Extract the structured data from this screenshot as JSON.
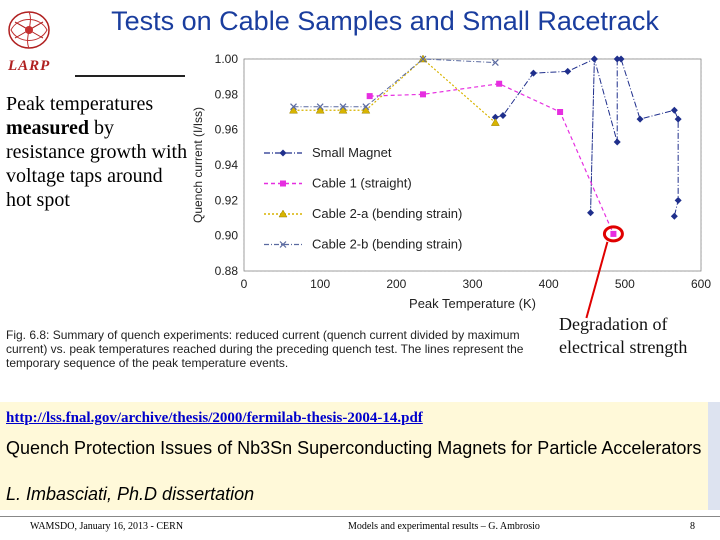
{
  "title": "Tests on Cable Samples and Small Racetrack",
  "logo_text": "LARP",
  "left_text": {
    "line_pre": "Peak temperatures ",
    "bold": "measured",
    "line_post": " by resistance growth with voltage taps around hot spot"
  },
  "caption": "Fig. 6.8: Summary of quench experiments: reduced current (quench current divided by maximum current) vs. peak temperatures reached during the preceding quench test. The lines represent the temporary sequence of the peak temperature events.",
  "degradation": "Degradation of electrical strength",
  "link": "http://lss.fnal.gov/archive/thesis/2000/fermilab-thesis-2004-14.pdf",
  "thesis_title": "Quench Protection Issues of Nb3Sn Superconducting Magnets for Particle Accelerators",
  "thesis_author": "L. Imbasciati, Ph.D dissertation",
  "footer": {
    "left": "WAMSDO, January 16, 2013 - CERN",
    "center": "Models and experimental results – G. Ambrosio",
    "page": "8"
  },
  "colors": {
    "title": "#1a3d9e",
    "small_magnet": "#1f2f8c",
    "cable1": "#e62ee0",
    "cable2a": "#d8b400",
    "cable2b": "#5a6aa0",
    "highlight": "#e00000"
  },
  "chart_data": {
    "type": "line",
    "xlabel": "Peak Temperature (K)",
    "ylabel": "Quench current (I/Iss)",
    "xlim": [
      0,
      600
    ],
    "ylim": [
      0.88,
      1.0
    ],
    "xticks": [
      0,
      100,
      200,
      300,
      400,
      500,
      600
    ],
    "yticks": [
      0.88,
      0.9,
      0.92,
      0.94,
      0.96,
      0.98,
      1.0
    ],
    "ytick_labels": [
      "0.88",
      "0.90",
      "0.92",
      "0.94",
      "0.96",
      "0.98",
      "1.00"
    ],
    "grid": true,
    "legend_position": "left",
    "series": [
      {
        "name": "Small Magnet",
        "marker": "diamond",
        "x": [
          330,
          340,
          380,
          425,
          460,
          455,
          460,
          490,
          490,
          495,
          520,
          565,
          570,
          570,
          565
        ],
        "y": [
          0.967,
          0.968,
          0.992,
          0.993,
          1.0,
          0.913,
          1.0,
          0.953,
          1.0,
          1.0,
          0.966,
          0.971,
          0.966,
          0.92,
          0.911
        ]
      },
      {
        "name": "Cable 1 (straight)",
        "marker": "square",
        "x": [
          165,
          235,
          335,
          415,
          485
        ],
        "y": [
          0.979,
          0.98,
          0.986,
          0.97,
          0.901
        ]
      },
      {
        "name": "Cable 2-a (bending strain)",
        "marker": "triangle",
        "x": [
          65,
          100,
          130,
          160,
          235,
          330
        ],
        "y": [
          0.971,
          0.971,
          0.971,
          0.971,
          1.0,
          0.964
        ]
      },
      {
        "name": "Cable 2-b (bending strain)",
        "marker": "x",
        "x": [
          65,
          100,
          130,
          160,
          235,
          330
        ],
        "y": [
          0.973,
          0.973,
          0.973,
          0.973,
          1.0,
          0.998
        ]
      }
    ],
    "highlight_point": {
      "x": 485,
      "y": 0.901
    }
  }
}
